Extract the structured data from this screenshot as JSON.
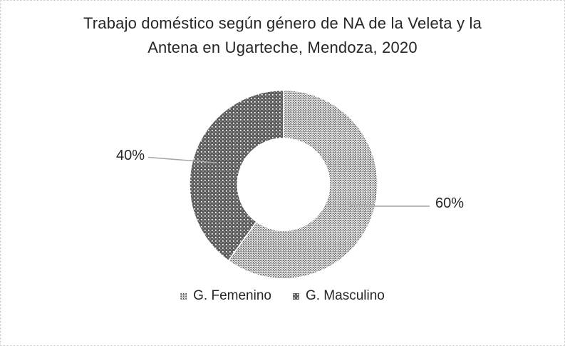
{
  "title": {
    "lines": [
      "Trabajo doméstico según género de NA de la Veleta y la",
      "Antena en Ugarteche, Mendoza, 2020"
    ]
  },
  "data_labels": {
    "femenino": "60%",
    "masculino": "40%"
  },
  "legend": {
    "items": [
      {
        "id": "femenino",
        "label": "G. Femenino"
      },
      {
        "id": "masculino",
        "label": "G. Masculino"
      }
    ]
  },
  "colors": {
    "pattern_dark": "#595959",
    "pattern_light_bg": "#ffffff",
    "leader_line": "#a6a6a6",
    "text": "#262626",
    "page_border": "#c9c9c9"
  },
  "chart_data": {
    "type": "pie",
    "subtype": "donut",
    "title": "Trabajo doméstico según género de NA de la Veleta y la Antena en Ugarteche, Mendoza, 2020",
    "categories": [
      "G. Femenino",
      "G. Masculino"
    ],
    "values": [
      60,
      40
    ],
    "data_labels": [
      "60%",
      "40%"
    ],
    "start_angle_deg": 0,
    "direction": "clockwise",
    "hole_ratio": 0.49,
    "legend_position": "bottom"
  }
}
